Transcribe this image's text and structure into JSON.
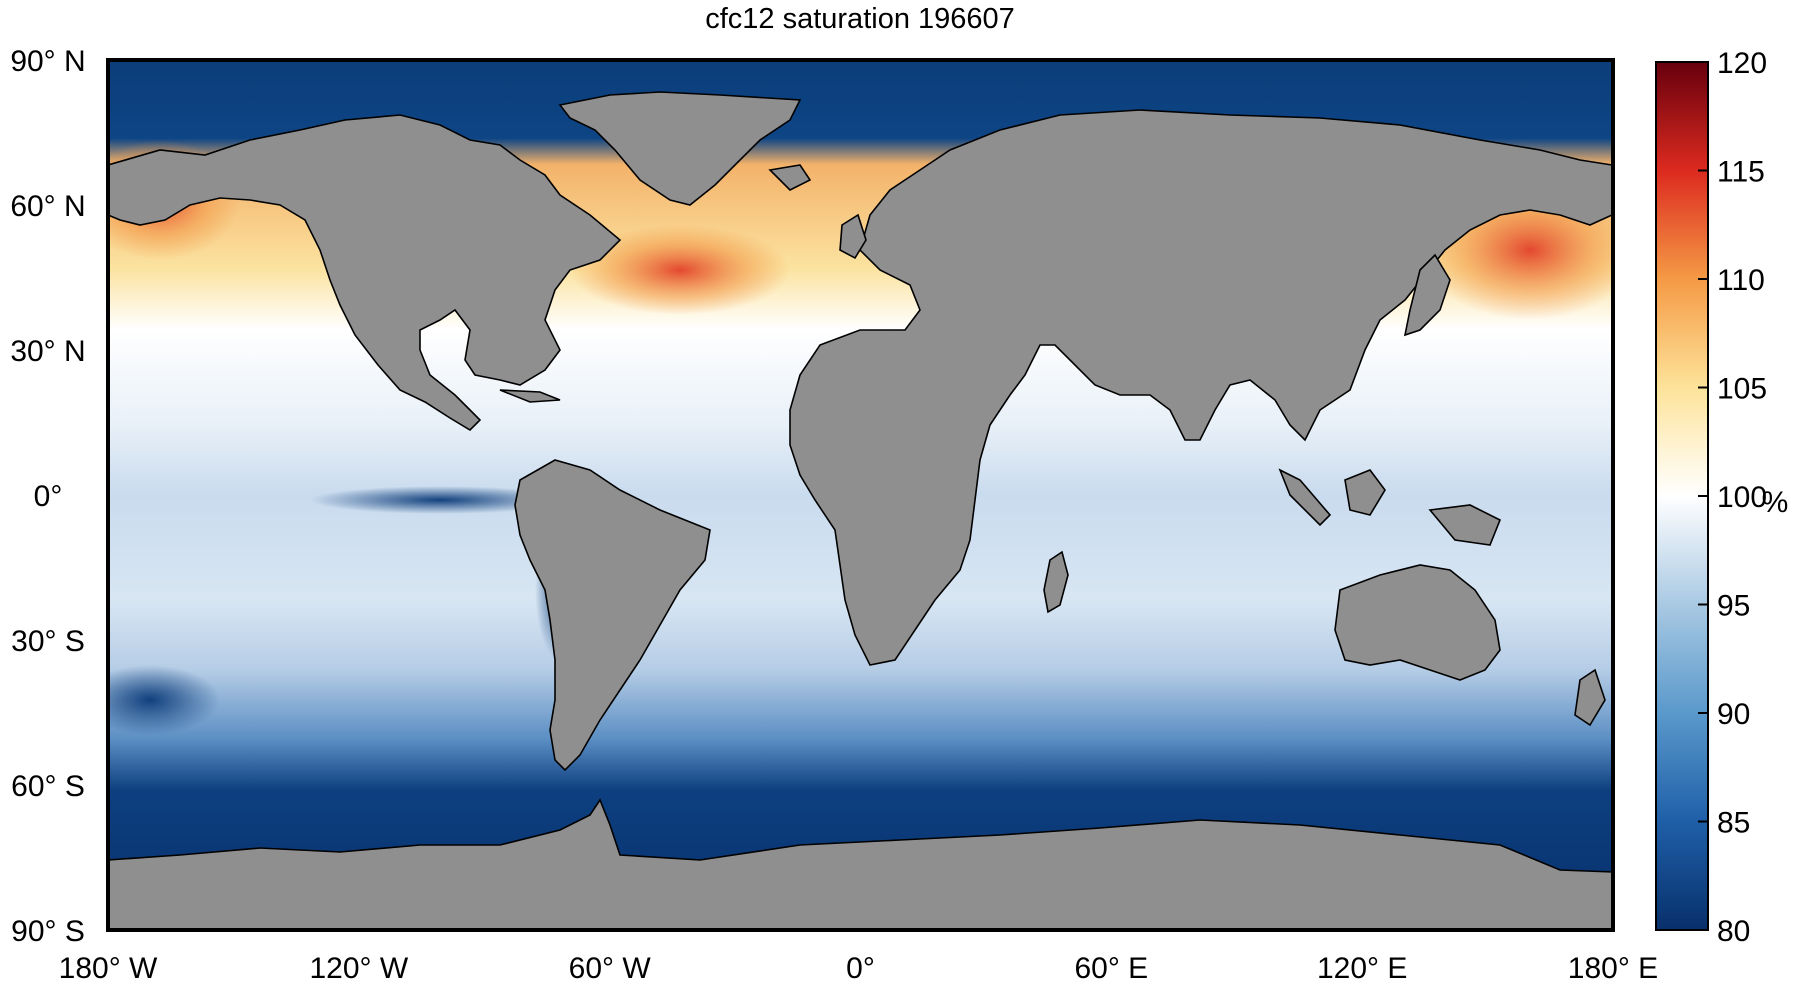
{
  "title": "cfc12 saturation 196607",
  "axes": {
    "lat_ticks": [
      {
        "value": 90,
        "text": "90",
        "hemi": "N"
      },
      {
        "value": 60,
        "text": "60",
        "hemi": "N"
      },
      {
        "value": 30,
        "text": "30",
        "hemi": "N"
      },
      {
        "value": 0,
        "text": "0",
        "hemi": ""
      },
      {
        "value": -30,
        "text": "30",
        "hemi": "S"
      },
      {
        "value": -60,
        "text": "60",
        "hemi": "S"
      },
      {
        "value": -90,
        "text": "90",
        "hemi": "S"
      }
    ],
    "lon_ticks": [
      {
        "value": -180,
        "text": "180",
        "hemi": "W"
      },
      {
        "value": -120,
        "text": "120",
        "hemi": "W"
      },
      {
        "value": -60,
        "text": "60",
        "hemi": "W"
      },
      {
        "value": 0,
        "text": "0",
        "hemi": ""
      },
      {
        "value": 60,
        "text": "60",
        "hemi": "E"
      },
      {
        "value": 120,
        "text": "120",
        "hemi": "E"
      },
      {
        "value": 180,
        "text": "180",
        "hemi": "E"
      }
    ]
  },
  "colorbar": {
    "min": 80,
    "max": 120,
    "ticks": [
      "80",
      "85",
      "90",
      "95",
      "100",
      "105",
      "110",
      "115",
      "120"
    ],
    "unit": "%"
  },
  "colors": {
    "land": "#8f8f8f",
    "deep_low": "#08306b",
    "neutral": "#ffffff",
    "deep_high": "#67000d"
  }
}
